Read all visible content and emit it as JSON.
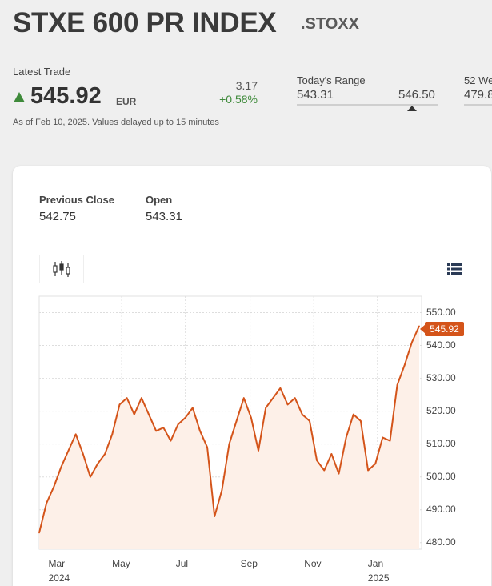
{
  "header": {
    "title": "STXE 600 PR INDEX",
    "ric": ".STOXX"
  },
  "latest_trade": {
    "label": "Latest Trade",
    "price": "545.92",
    "currency": "EUR",
    "change": "3.17",
    "change_pct": "+0.58%",
    "as_of": "As of Feb 10, 2025. Values delayed up to 15 minutes",
    "direction": "up",
    "up_color": "#3e8a3a"
  },
  "todays_range": {
    "label": "Today's Range",
    "low": "543.31",
    "high": "546.50"
  },
  "week52": {
    "label": "52 We",
    "low": "479.8"
  },
  "stats": {
    "previous_close_label": "Previous Close",
    "previous_close": "542.75",
    "open_label": "Open",
    "open": "543.31"
  },
  "toolbar": {
    "chart_type_icon": "candlestick-icon",
    "menu_icon": "list-icon"
  },
  "chart_data": {
    "type": "area",
    "line_color": "#d4541a",
    "fill_color": "#fdf0e8",
    "current_value_label": "545.92",
    "ylim": [
      478,
      555
    ],
    "y_ticks": [
      "550.00",
      "540.00",
      "530.00",
      "520.00",
      "510.00",
      "500.00",
      "490.00",
      "480.00"
    ],
    "x_ticks": [
      {
        "label": "Mar",
        "year": "2024"
      },
      {
        "label": "May",
        "year": ""
      },
      {
        "label": "Jul",
        "year": ""
      },
      {
        "label": "Sep",
        "year": ""
      },
      {
        "label": "Nov",
        "year": ""
      },
      {
        "label": "Jan",
        "year": "2025"
      }
    ],
    "grid": true,
    "series": [
      {
        "x": [
          "2024-02-12",
          "2024-02-19",
          "2024-02-26",
          "2024-03-04",
          "2024-03-11",
          "2024-03-18",
          "2024-03-25",
          "2024-04-01",
          "2024-04-08",
          "2024-04-15",
          "2024-04-22",
          "2024-04-29",
          "2024-05-06",
          "2024-05-13",
          "2024-05-20",
          "2024-05-27",
          "2024-06-03",
          "2024-06-10",
          "2024-06-17",
          "2024-06-24",
          "2024-07-01",
          "2024-07-08",
          "2024-07-15",
          "2024-07-22",
          "2024-07-29",
          "2024-08-05",
          "2024-08-12",
          "2024-08-19",
          "2024-08-26",
          "2024-09-02",
          "2024-09-09",
          "2024-09-16",
          "2024-09-23",
          "2024-09-30",
          "2024-10-07",
          "2024-10-14",
          "2024-10-21",
          "2024-10-28",
          "2024-11-04",
          "2024-11-11",
          "2024-11-18",
          "2024-11-25",
          "2024-12-02",
          "2024-12-09",
          "2024-12-16",
          "2024-12-23",
          "2024-12-30",
          "2025-01-06",
          "2025-01-13",
          "2025-01-20",
          "2025-01-27",
          "2025-02-03",
          "2025-02-10"
        ],
        "y": [
          483,
          492,
          497,
          503,
          508,
          513,
          507,
          500,
          504,
          507,
          513,
          522,
          524,
          519,
          524,
          519,
          514,
          515,
          511,
          516,
          518,
          521,
          514,
          509,
          488,
          496,
          510,
          517,
          524,
          518,
          508,
          521,
          524,
          527,
          522,
          524,
          519,
          517,
          505,
          502,
          507,
          501,
          512,
          519,
          517,
          502,
          504,
          512,
          511,
          528,
          534,
          541,
          545.92
        ]
      }
    ]
  }
}
